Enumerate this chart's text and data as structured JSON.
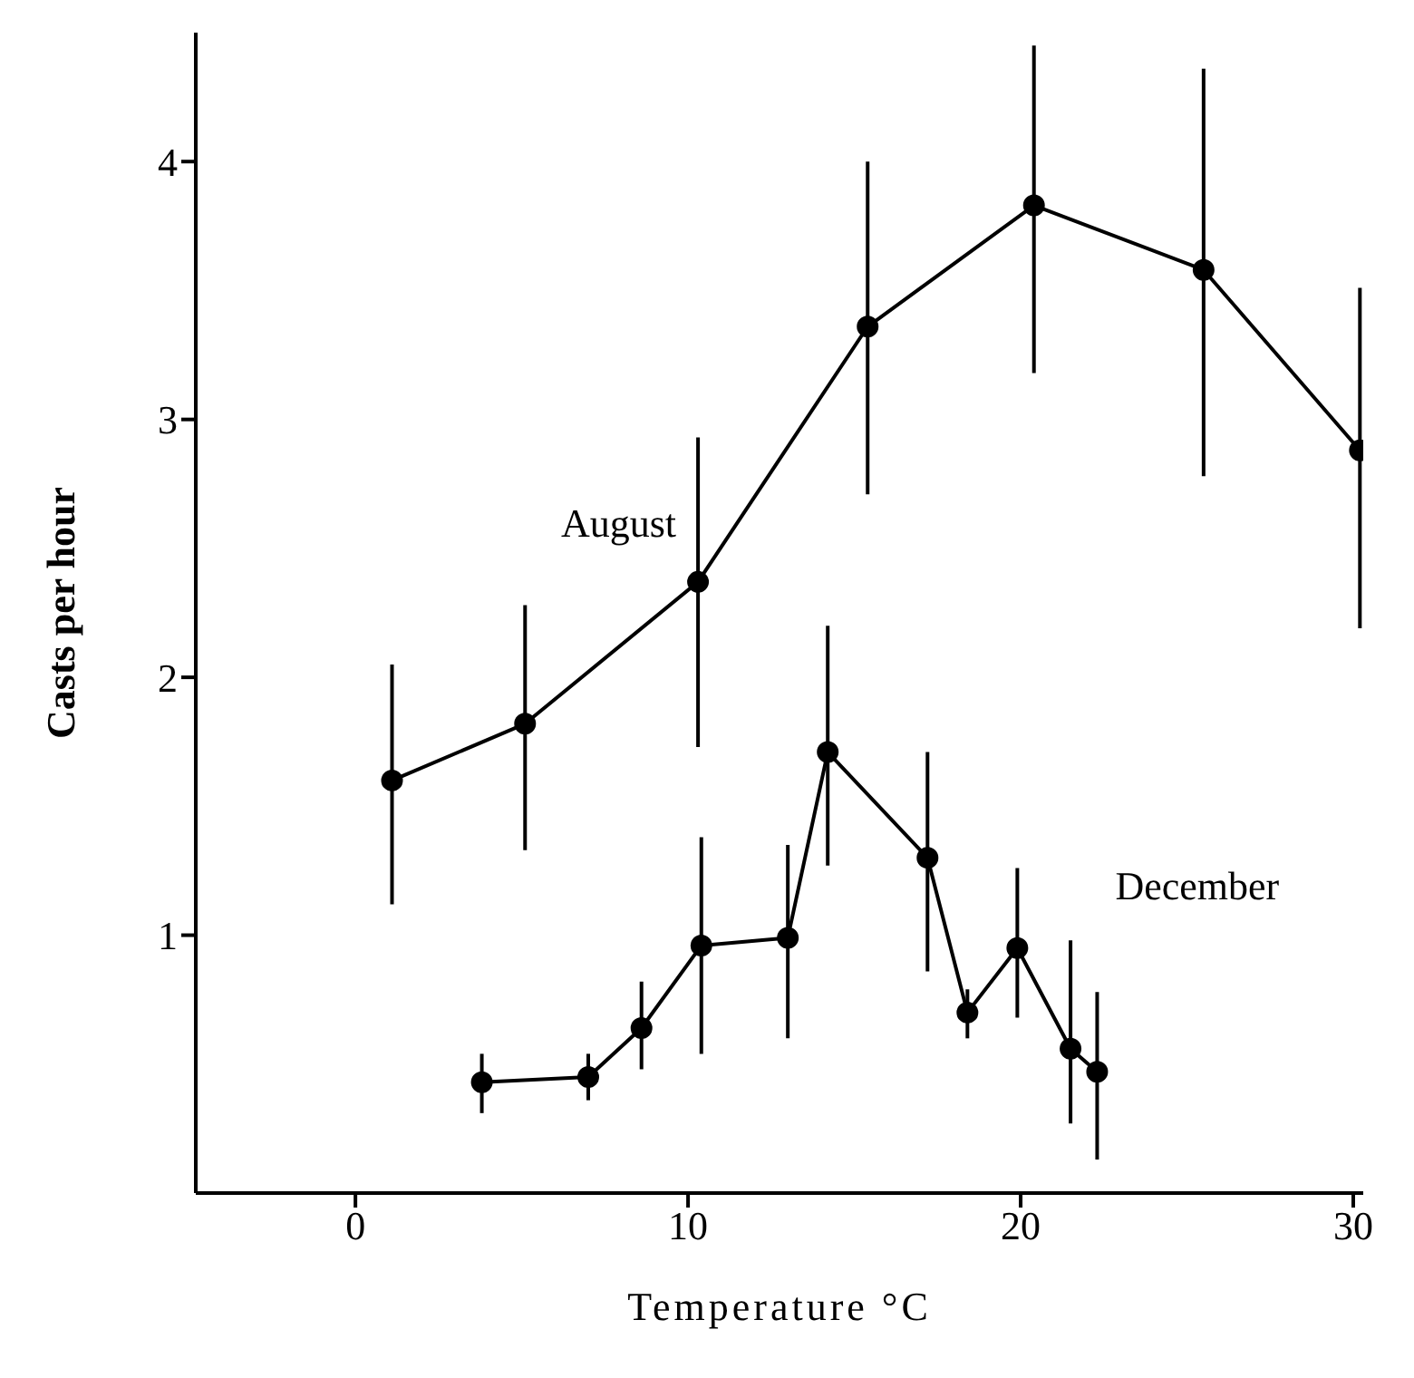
{
  "chart_data": {
    "type": "line",
    "xlabel": "Temperature °C",
    "ylabel": "Casts per hour",
    "xlim": [
      -4.8,
      30.3
    ],
    "xticks": [
      0,
      10,
      20,
      30
    ],
    "ylim": [
      0,
      4.5
    ],
    "yticks": [
      1,
      2,
      3,
      4
    ],
    "grid": false,
    "marker": "circle",
    "line_style": "solid",
    "series": [
      {
        "name": "August",
        "color": "#000000",
        "x": [
          1.1,
          5.1,
          10.3,
          15.4,
          20.4,
          25.5,
          30.2
        ],
        "values": [
          1.6,
          1.82,
          2.37,
          3.36,
          3.83,
          3.58,
          2.88
        ],
        "errors": [
          [
            1.12,
            2.05
          ],
          [
            1.33,
            2.28
          ],
          [
            1.73,
            2.93
          ],
          [
            2.71,
            4.0
          ],
          [
            3.18,
            4.45
          ],
          [
            2.78,
            4.36
          ],
          [
            2.19,
            3.51
          ]
        ]
      },
      {
        "name": "December",
        "color": "#000000",
        "x": [
          3.8,
          7.0,
          8.6,
          10.4,
          13.0,
          14.2,
          17.2,
          18.4,
          19.9,
          21.5,
          22.3
        ],
        "values": [
          0.43,
          0.45,
          0.64,
          0.96,
          0.99,
          1.71,
          1.3,
          0.7,
          0.95,
          0.56,
          0.47
        ],
        "errors": [
          [
            0.31,
            0.54
          ],
          [
            0.36,
            0.54
          ],
          [
            0.48,
            0.82
          ],
          [
            0.54,
            1.38
          ],
          [
            0.6,
            1.35
          ],
          [
            1.27,
            2.2
          ],
          [
            0.86,
            1.71
          ],
          [
            0.6,
            0.79
          ],
          [
            0.68,
            1.26
          ],
          [
            0.27,
            0.98
          ],
          [
            0.13,
            0.78
          ]
        ]
      }
    ]
  }
}
